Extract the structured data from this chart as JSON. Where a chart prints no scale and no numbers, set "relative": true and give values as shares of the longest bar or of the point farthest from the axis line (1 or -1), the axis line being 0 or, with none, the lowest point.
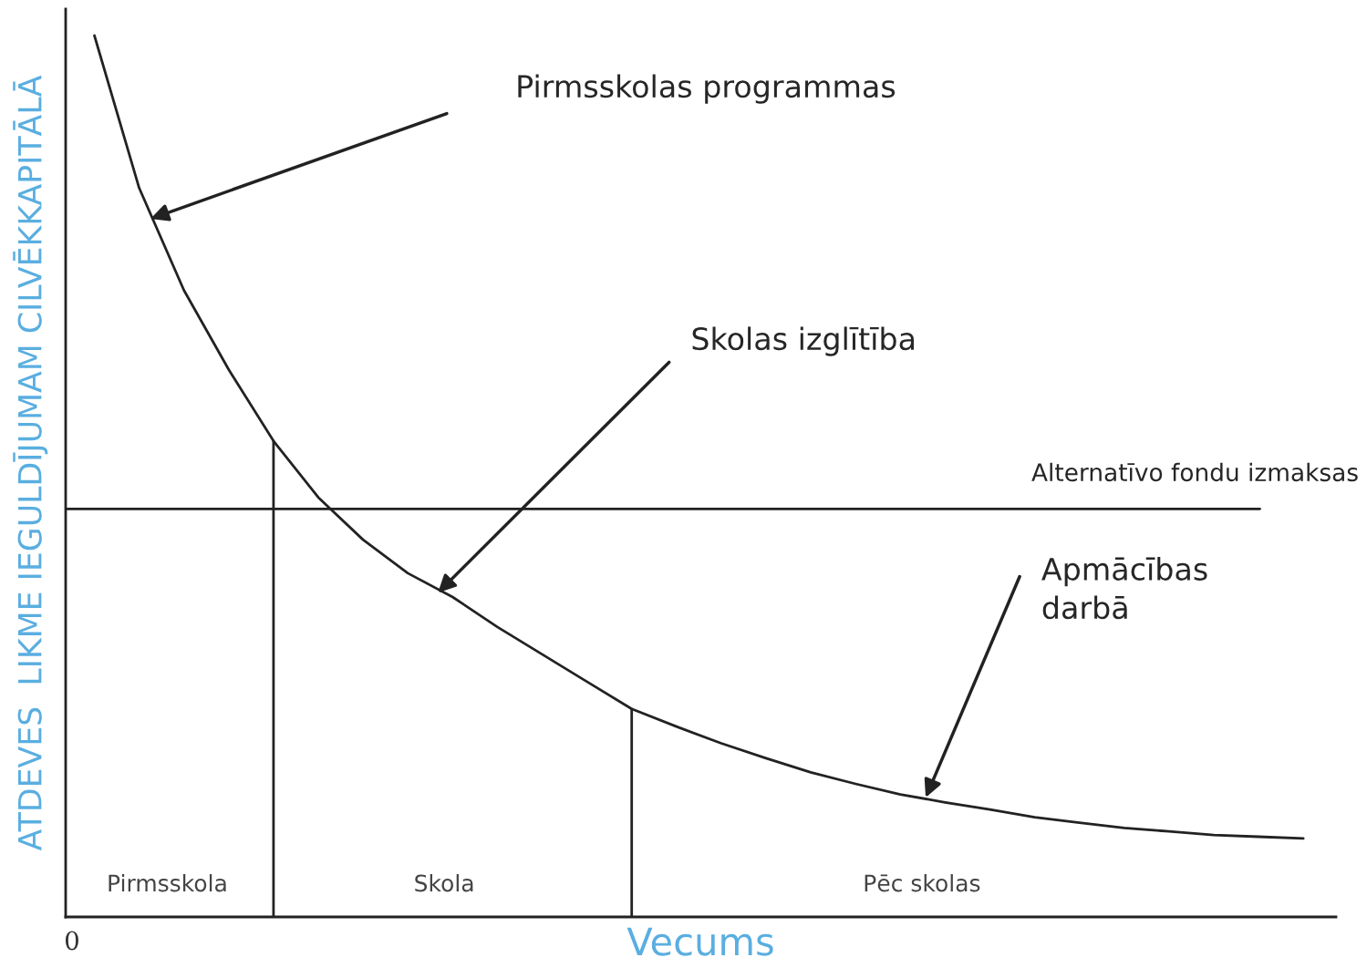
{
  "chart_data": {
    "type": "line",
    "relative": true,
    "xlabel": "Vecums",
    "ylabel": "ATDEVES  LIKME IEGULDĪJUMAM CILVĒKKAPITĀLĀ",
    "categories": [
      null,
      null,
      null,
      null,
      null,
      null,
      null,
      null,
      null,
      null,
      null,
      null,
      null,
      null,
      null,
      null,
      null,
      null,
      null,
      null,
      null,
      null,
      null,
      null,
      null,
      null,
      null,
      null
    ],
    "series": [
      {
        "color": "#222222",
        "values": [
          1.0,
          0.827,
          0.711,
          0.621,
          0.54,
          0.476,
          0.428,
          0.39,
          0.363,
          0.329,
          0.298,
          0.267,
          0.236,
          0.216,
          0.197,
          0.18,
          0.164,
          0.151,
          0.139,
          0.13,
          0.122,
          0.113,
          0.107,
          0.101,
          0.097,
          0.093,
          0.091,
          0.089
        ]
      }
    ],
    "ref_lines": [
      {
        "axis": "y",
        "value": 0.463,
        "label": "Alternatīvo fondu izmaksas",
        "color": "#222222"
      }
    ],
    "annotations": [
      "0",
      "Pirmsskola",
      "Skola",
      "Pēc skolas",
      "Pirmsskolas programmas",
      "Skolas izglītība",
      "Apmācības\ndarbā"
    ]
  }
}
